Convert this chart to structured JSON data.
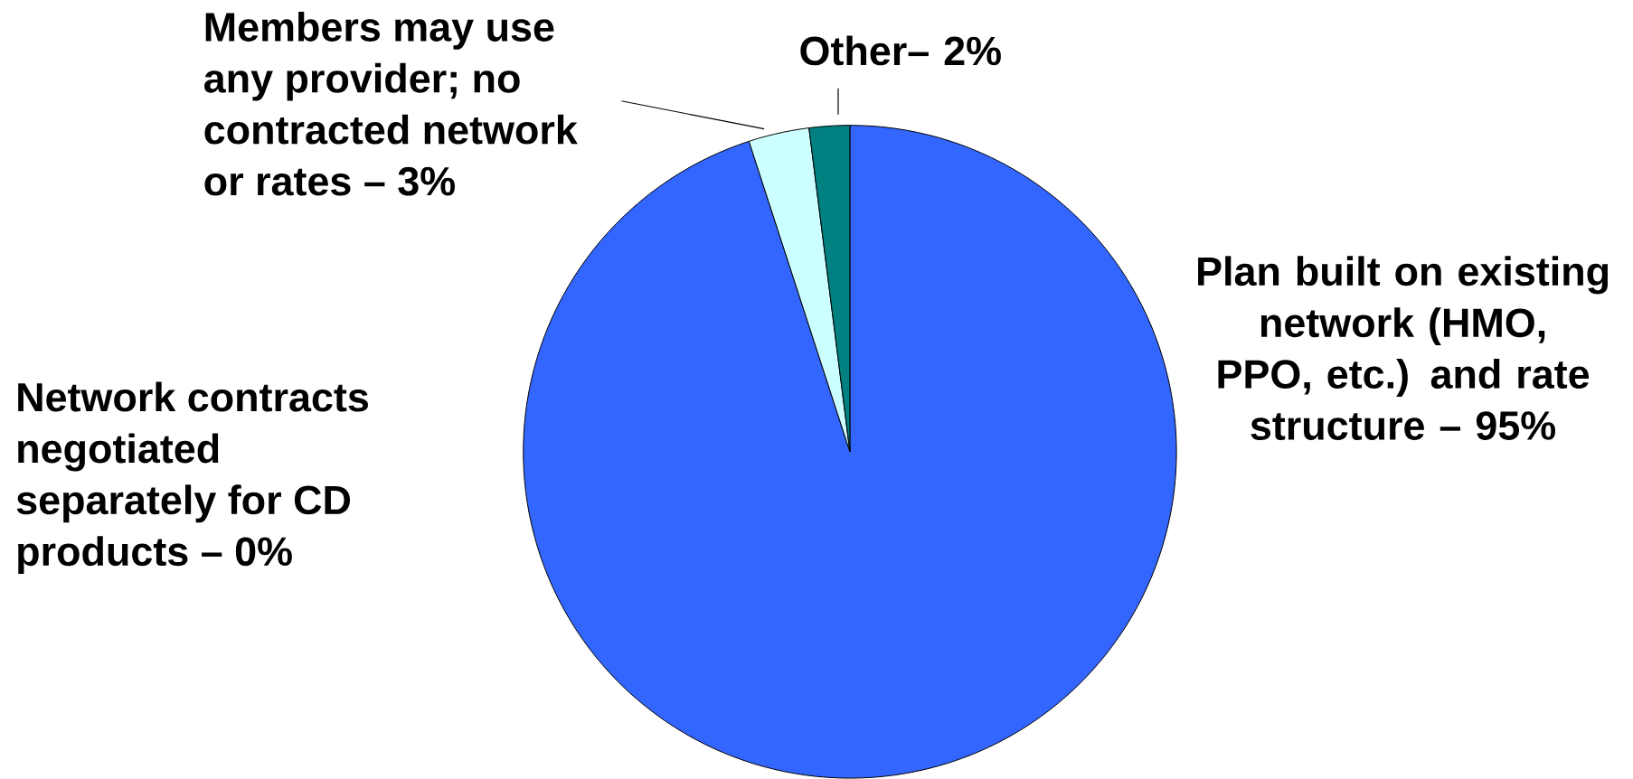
{
  "chart_data": {
    "type": "pie",
    "categories": [
      "Plan built on existing network (HMO, PPO, etc.) and rate structure – 95%",
      "Network contracts negotiated separately for CD products – 0%",
      "Members may use any provider; no contracted network or rates – 3%",
      "Other– 2%"
    ],
    "values": [
      95,
      0,
      3,
      2
    ],
    "colors": [
      "#3366ff",
      "#9999ff",
      "#ccffff",
      "#008080"
    ]
  }
}
